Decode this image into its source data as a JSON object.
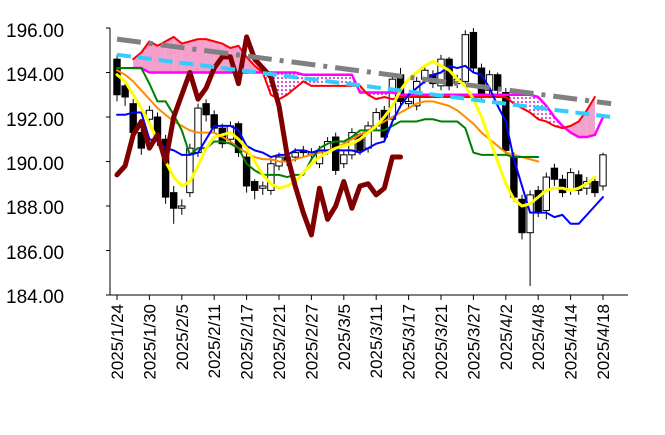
{
  "chart_data": {
    "type": "candlestick",
    "title": "",
    "xlabel": "",
    "ylabel": "",
    "ylim": [
      184,
      196
    ],
    "y_ticks": [
      "196.00",
      "194.00",
      "192.00",
      "190.00",
      "188.00",
      "186.00",
      "184.00"
    ],
    "y_tick_values": [
      196,
      194,
      192,
      190,
      188,
      186,
      184
    ],
    "x_tick_labels": [
      "2025/1/24",
      "2025/1/30",
      "2025/2/5",
      "2025/2/11",
      "2025/2/17",
      "2025/2/21",
      "2025/2/27",
      "2025/3/5",
      "2025/3/11",
      "2025/3/17",
      "2025/3/21",
      "2025/3/27",
      "2025/4/2",
      "2025/4/8",
      "2025/4/14",
      "2025/4/18"
    ],
    "x_tick_index": [
      0,
      4,
      8,
      12,
      16,
      20,
      24,
      28,
      32,
      36,
      40,
      44,
      48,
      52,
      56,
      60
    ],
    "grid": false,
    "legend": "none",
    "candles": {
      "open": [
        194.6,
        193.4,
        192.6,
        191.3,
        191.9,
        192.0,
        191.0,
        188.6,
        187.9,
        188.6,
        190.4,
        192.6,
        192.1,
        191.5,
        191.0,
        191.7,
        190.2,
        189.1,
        188.8,
        188.7,
        189.8,
        190.2,
        190.2,
        190.5,
        190.3,
        189.9,
        190.5,
        191.1,
        189.9,
        190.3,
        191.2,
        190.6,
        191.6,
        192.3,
        191.9,
        193.9,
        192.6,
        192.5,
        193.7,
        193.9,
        193.4,
        194.6,
        193.5,
        193.6,
        195.8,
        194.2,
        193.2,
        193.9,
        193.1,
        190.2,
        188.3,
        186.8,
        188.7,
        187.8,
        189.7,
        189.2,
        188.7,
        189.4,
        188.8,
        189.1,
        188.9
      ],
      "close": [
        193.0,
        192.9,
        191.3,
        190.6,
        192.3,
        191.0,
        188.4,
        187.9,
        188.0,
        190.6,
        192.4,
        192.1,
        191.5,
        190.8,
        191.6,
        190.4,
        188.9,
        188.7,
        188.9,
        189.9,
        190.2,
        190.0,
        190.4,
        190.4,
        190.4,
        190.5,
        190.9,
        189.6,
        190.3,
        191.3,
        190.5,
        191.6,
        192.2,
        191.1,
        193.7,
        192.7,
        192.7,
        193.6,
        194.1,
        193.5,
        194.6,
        193.4,
        193.7,
        195.7,
        194.2,
        192.9,
        193.9,
        193.2,
        190.5,
        188.4,
        186.8,
        188.5,
        187.7,
        189.3,
        189.2,
        188.6,
        189.5,
        188.7,
        189.1,
        188.6,
        190.3
      ],
      "high": [
        194.8,
        193.5,
        192.8,
        191.6,
        192.5,
        192.2,
        191.2,
        188.9,
        188.3,
        190.8,
        192.6,
        192.8,
        192.3,
        191.7,
        191.8,
        191.8,
        190.4,
        189.2,
        189.1,
        190.1,
        190.4,
        190.4,
        190.6,
        190.7,
        190.6,
        190.7,
        191.1,
        191.3,
        190.5,
        191.5,
        191.3,
        191.8,
        192.4,
        192.5,
        193.9,
        194.2,
        192.9,
        193.8,
        194.3,
        194.1,
        194.8,
        194.7,
        193.9,
        195.9,
        196.0,
        194.4,
        194.1,
        194.0,
        193.3,
        190.4,
        188.5,
        188.7,
        188.9,
        189.5,
        189.9,
        189.4,
        189.7,
        189.6,
        189.3,
        189.3,
        190.4
      ],
      "low": [
        192.7,
        192.5,
        191.1,
        190.3,
        191.6,
        190.7,
        188.1,
        187.2,
        187.6,
        188.4,
        190.2,
        191.8,
        191.3,
        190.6,
        190.8,
        190.2,
        188.6,
        188.3,
        188.5,
        188.5,
        189.6,
        189.8,
        190.0,
        190.2,
        190.1,
        189.7,
        190.3,
        189.4,
        189.7,
        190.1,
        190.3,
        190.4,
        191.4,
        190.9,
        191.7,
        192.4,
        192.4,
        192.3,
        193.5,
        193.3,
        193.2,
        193.2,
        193.3,
        193.5,
        194.0,
        192.7,
        193.0,
        193.0,
        190.3,
        188.2,
        186.5,
        184.4,
        187.5,
        187.4,
        188.9,
        188.4,
        188.5,
        188.5,
        188.5,
        188.4,
        188.7
      ]
    },
    "series": [
      {
        "color": "#0000ff",
        "x_start": 0,
        "values": [
          192.1,
          192.1,
          192.2,
          192.2,
          191.0,
          190.9,
          190.6,
          190.5,
          190.3,
          190.3,
          190.4,
          191.0,
          191.6,
          191.6,
          191.6,
          191.4,
          190.7,
          190.5,
          190.4,
          190.2,
          190.3,
          190.3,
          190.5,
          190.5,
          190.4,
          190.5,
          190.5,
          190.5,
          190.5,
          190.5,
          190.4,
          190.6,
          190.8,
          190.9,
          191.8,
          192.5,
          193.0,
          193.3,
          193.6,
          193.9,
          194.0,
          194.3,
          194.2,
          194.3,
          194.0,
          193.9,
          193.3,
          192.5,
          191.8,
          190.1,
          188.9,
          187.7,
          187.7,
          187.7,
          187.5,
          187.6,
          187.2,
          187.2,
          187.6,
          188.0,
          188.4
        ]
      },
      {
        "color": "#008000",
        "x_start": 0,
        "values": [
          194.2,
          194.2,
          194.2,
          194.2,
          193.5,
          192.7,
          192.7,
          192.1,
          191.4,
          190.3,
          190.6,
          190.6,
          190.9,
          190.9,
          190.8,
          190.6,
          189.9,
          189.6,
          189.4,
          189.4,
          189.4,
          189.3,
          189.4,
          189.4,
          190.1,
          190.6,
          190.8,
          190.9,
          190.9,
          191.1,
          191.4,
          191.4,
          191.4,
          191.4,
          191.6,
          191.8,
          191.8,
          191.8,
          191.9,
          191.9,
          191.8,
          191.8,
          191.8,
          191.5,
          190.4,
          190.3,
          190.3,
          190.3,
          190.3,
          190.2,
          190.2,
          190.2,
          190.2
        ]
      },
      {
        "color": "#ff8c00",
        "x_start": 0,
        "values": [
          194.1,
          193.9,
          193.6,
          193.2,
          192.8,
          192.4,
          192.1,
          191.8,
          191.6,
          191.4,
          191.3,
          191.3,
          191.3,
          191.1,
          190.9,
          190.6,
          190.4,
          190.2,
          190.1,
          190.1,
          190.0,
          190.0,
          190.1,
          190.2,
          190.3,
          190.4,
          190.5,
          190.6,
          190.8,
          191.0,
          191.2,
          191.4,
          191.6,
          191.8,
          192.0,
          192.2,
          192.4,
          192.6,
          192.7,
          192.7,
          192.6,
          192.5,
          192.3,
          192.0,
          191.7,
          191.3,
          191.0,
          190.7,
          190.4,
          190.3,
          190.2,
          190.1,
          190.0
        ]
      },
      {
        "color": "#ffff00",
        "x_start": 0,
        "values": [
          193.9,
          193.6,
          193.0,
          192.4,
          191.7,
          191.0,
          190.0,
          189.3,
          188.9,
          189.1,
          189.8,
          190.6,
          191.1,
          191.2,
          191.3,
          191.0,
          190.6,
          190.0,
          189.4,
          189.0,
          188.8,
          188.9,
          189.1,
          189.5,
          189.9,
          190.2,
          190.4,
          190.6,
          190.7,
          190.8,
          191.0,
          191.3,
          191.6,
          192.0,
          192.5,
          193.2,
          193.7,
          194.0,
          194.3,
          194.5,
          194.3,
          194.1,
          193.7,
          193.4,
          192.8,
          192.0,
          191.0,
          190.0,
          189.0,
          188.3,
          188.0,
          188.1,
          188.4,
          188.7,
          188.8,
          188.8,
          188.7,
          188.8,
          189.0,
          189.3
        ]
      },
      {
        "color": "#800000",
        "x_start": 0,
        "values": [
          189.4,
          189.8,
          191.2,
          191.8,
          190.6,
          191.2,
          190.0,
          192.0,
          193.0,
          194.0,
          192.8,
          193.3,
          194.2,
          194.7,
          194.7,
          193.5,
          195.6,
          194.6,
          194.2,
          193.8,
          192.5,
          190.3,
          188.9,
          187.7,
          186.7,
          188.8,
          187.4,
          188.0,
          189.1,
          187.9,
          188.9,
          189.0,
          188.5,
          188.8,
          190.2,
          190.2
        ]
      },
      {
        "color": "#ff0000",
        "x_start": 2,
        "values": [
          194.6,
          194.9,
          195.4,
          195.2,
          195.4,
          195.6,
          195.3,
          195.4,
          195.5,
          195.5,
          195.4,
          195.3,
          195.1,
          195.2,
          194.7,
          194.3,
          194.0,
          193.0,
          192.8,
          193.0,
          193.3,
          193.6,
          193.4,
          193.4,
          193.4,
          193.4,
          193.4,
          193.4,
          193.4,
          193.0,
          192.8,
          192.9,
          192.8,
          192.9,
          192.9,
          192.9,
          192.9,
          192.9,
          192.9,
          192.9,
          192.9,
          192.9,
          192.9,
          192.9,
          192.9,
          192.9,
          192.9,
          192.6,
          192.4,
          192.2,
          191.9,
          191.8,
          191.6,
          191.5,
          191.6,
          191.8,
          192.3,
          192.9
        ]
      },
      {
        "color": "#ff00ff",
        "x_start": 2,
        "values": [
          194.2,
          194.2,
          194.0,
          194.0,
          194.0,
          194.0,
          194.0,
          194.0,
          194.0,
          194.0,
          194.0,
          194.0,
          194.0,
          194.0,
          194.0,
          194.0,
          194.0,
          194.0,
          194.0,
          194.0,
          194.0,
          193.9,
          193.9,
          193.9,
          193.9,
          193.9,
          193.9,
          193.9,
          193.1,
          193.1,
          193.1,
          193.1,
          193.1,
          193.0,
          193.0,
          193.0,
          193.0,
          193.0,
          193.0,
          193.0,
          193.0,
          193.0,
          193.0,
          193.0,
          193.0,
          193.0,
          193.0,
          193.0,
          193.0,
          193.0,
          192.9,
          192.5,
          192.0,
          191.6,
          191.3,
          191.1,
          191.1,
          191.2,
          192.0
        ]
      }
    ],
    "trend_lines": [
      {
        "color": "#808080",
        "style": "dash-dot",
        "x": [
          0,
          61
        ],
        "y": [
          195.5,
          192.6
        ]
      },
      {
        "color": "#33ccff",
        "style": "dashed",
        "x": [
          0,
          61
        ],
        "y": [
          194.8,
          192.0
        ]
      }
    ]
  }
}
